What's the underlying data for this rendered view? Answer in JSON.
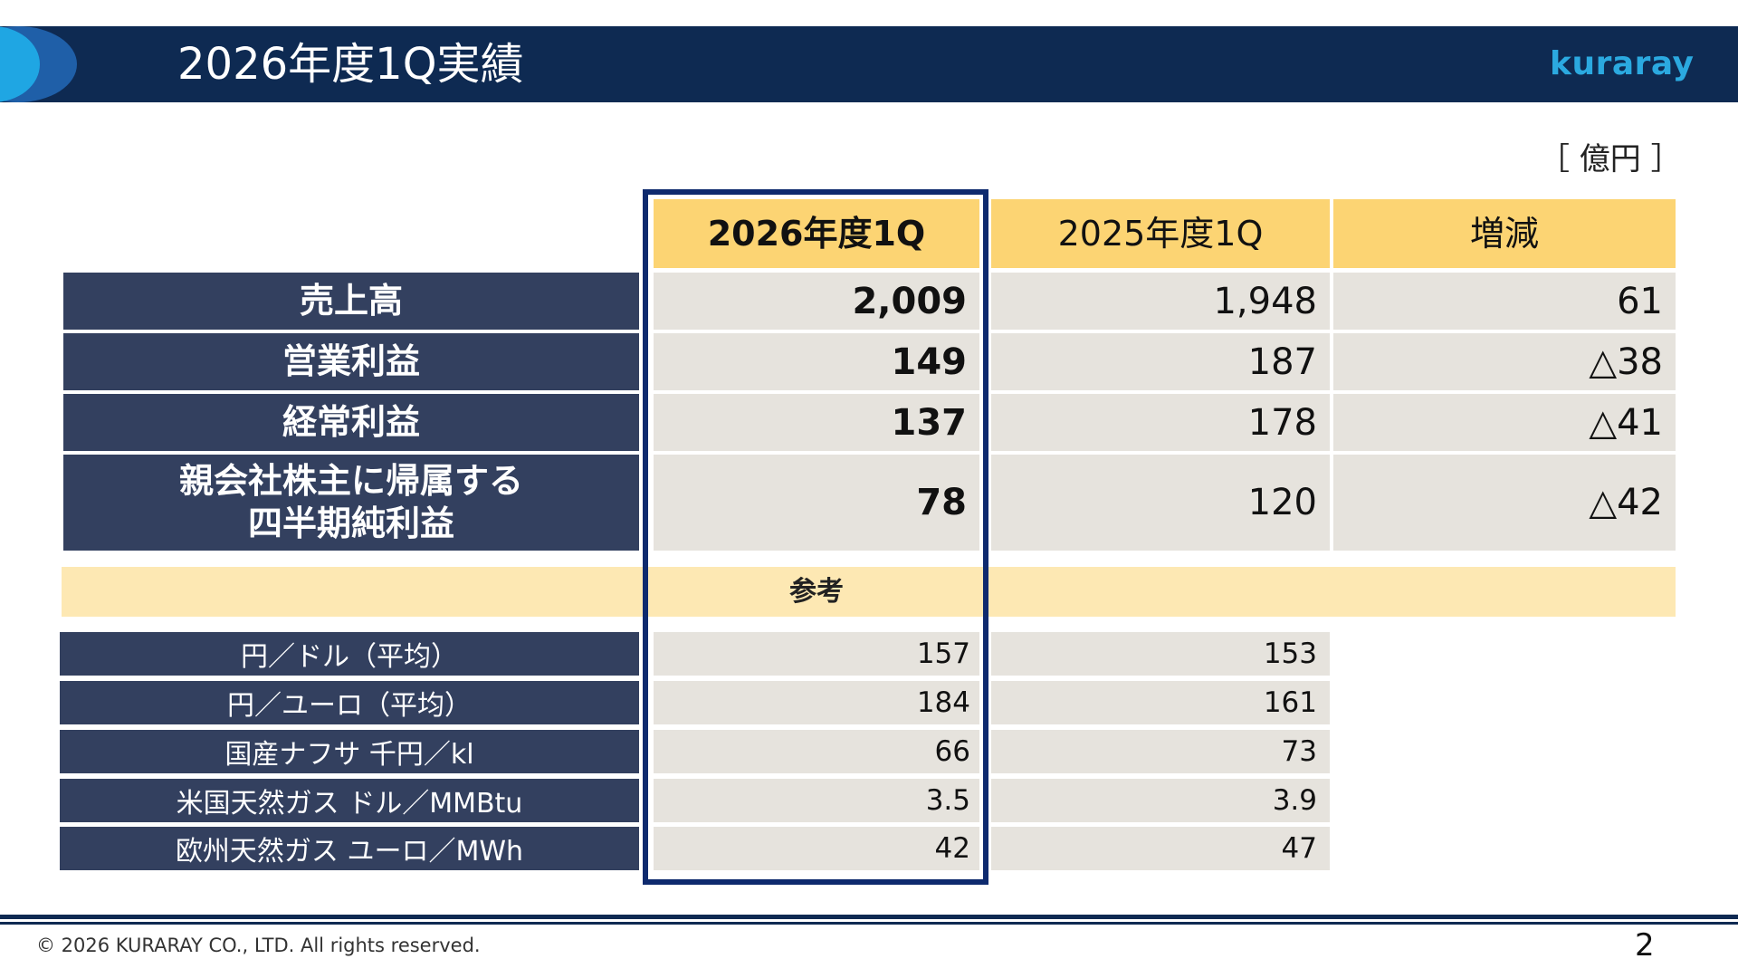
{
  "header": {
    "title": "2026年度1Q実績",
    "logo": "kuraray"
  },
  "unit": "［ 億円 ］",
  "columns": [
    "2026年度1Q",
    "2025年度1Q",
    "増減"
  ],
  "main_rows": [
    {
      "label": "売上高",
      "v1": "2,009",
      "v2": "1,948",
      "v3": "61"
    },
    {
      "label": "営業利益",
      "v1": "149",
      "v2": "187",
      "v3": "△38"
    },
    {
      "label": "経常利益",
      "v1": "137",
      "v2": "178",
      "v3": "△41"
    },
    {
      "label_line1": "親会社株主に帰属する",
      "label_line2": "四半期純利益",
      "v1": "78",
      "v2": "120",
      "v3": "△42"
    }
  ],
  "reference": {
    "label": "参考",
    "rows": [
      {
        "label": "円／ドル（平均）",
        "v1": "157",
        "v2": "153"
      },
      {
        "label": "円／ユーロ（平均）",
        "v1": "184",
        "v2": "161"
      },
      {
        "label": "国産ナフサ 千円／kl",
        "v1": "66",
        "v2": "73"
      },
      {
        "label": "米国天然ガス ドル／MMBtu",
        "v1": "3.5",
        "v2": "3.9"
      },
      {
        "label": "欧州天然ガス ユーロ／MWh",
        "v1": "42",
        "v2": "47"
      }
    ]
  },
  "footer": {
    "copyright": "© 2026 KURARAY CO., LTD. All rights reserved.",
    "page": "2"
  },
  "colors": {
    "header_bg": "#0e2a52",
    "row_label_bg": "#33405f",
    "column_header_bg": "#fcd473",
    "reference_bg": "#fde8b3",
    "value_bg": "#e6e3dd",
    "highlight_frame": "#0e2a6e",
    "logo": "#2ba9e0"
  }
}
